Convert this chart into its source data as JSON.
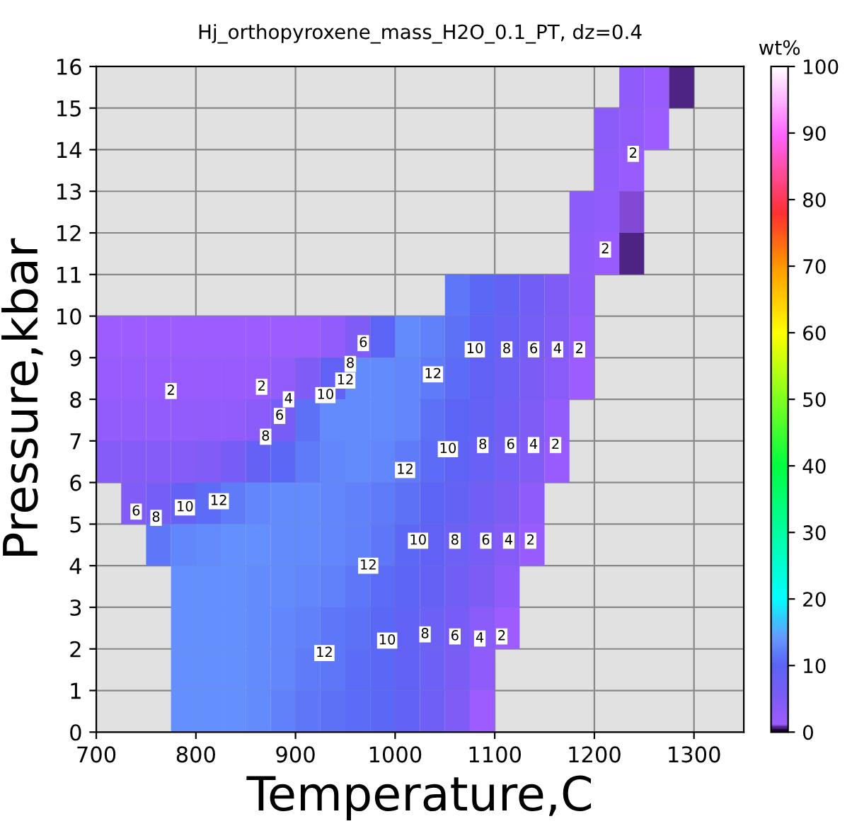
{
  "chart_data": {
    "type": "heatmap",
    "title": "Hj_orthopyroxene_mass_H2O_0.1_PT, dz=0.4",
    "xlabel": "Temperature,C",
    "ylabel": "Pressure,kbar",
    "clabel": "wt%",
    "x": [
      712.5,
      737.5,
      762.5,
      787.5,
      812.5,
      837.5,
      862.5,
      887.5,
      912.5,
      937.5,
      962.5,
      987.5,
      1012.5,
      1037.5,
      1062.5,
      1087.5,
      1112.5,
      1137.5,
      1162.5,
      1187.5,
      1212.5,
      1237.5,
      1262.5,
      1287.5,
      1312.5,
      1337.5
    ],
    "y": [
      15.5,
      14.5,
      13.5,
      12.5,
      11.5,
      10.5,
      9.5,
      8.5,
      7.5,
      6.5,
      5.5,
      4.5,
      3.5,
      2.5,
      1.5,
      0.5
    ],
    "cells": [
      [
        null,
        null,
        null,
        null,
        null,
        null,
        null,
        null,
        null,
        null,
        null,
        null,
        null,
        null,
        null,
        null,
        null,
        null,
        null,
        null,
        null,
        3,
        1.8,
        0.5,
        null,
        null
      ],
      [
        null,
        null,
        null,
        null,
        null,
        null,
        null,
        null,
        null,
        null,
        null,
        null,
        null,
        null,
        null,
        null,
        null,
        null,
        null,
        null,
        3.4,
        2.5,
        1.2,
        null,
        null,
        null
      ],
      [
        null,
        null,
        null,
        null,
        null,
        null,
        null,
        null,
        null,
        null,
        null,
        null,
        null,
        null,
        null,
        null,
        null,
        null,
        null,
        null,
        3,
        1.9,
        null,
        null,
        null,
        null
      ],
      [
        null,
        null,
        null,
        null,
        null,
        null,
        null,
        null,
        null,
        null,
        null,
        null,
        null,
        null,
        null,
        null,
        null,
        null,
        null,
        3.2,
        2.4,
        1,
        null,
        null,
        null,
        null
      ],
      [
        null,
        null,
        null,
        null,
        null,
        null,
        null,
        null,
        null,
        null,
        null,
        null,
        null,
        null,
        null,
        null,
        null,
        null,
        null,
        3,
        1.6,
        0.5,
        null,
        null,
        null,
        null
      ],
      [
        null,
        null,
        null,
        null,
        null,
        null,
        null,
        null,
        null,
        null,
        null,
        null,
        null,
        null,
        11.7,
        10.3,
        8.6,
        6.9,
        5,
        3,
        null,
        null,
        null,
        null,
        null,
        null
      ],
      [
        1.5,
        1.5,
        1.5,
        1.5,
        1.5,
        1.5,
        1.5,
        1.5,
        1.5,
        2.5,
        5,
        10,
        13,
        12.4,
        11.2,
        9.7,
        8,
        6.3,
        4.3,
        2,
        null,
        null,
        null,
        null,
        null,
        null
      ],
      [
        1.8,
        1.8,
        1.8,
        1.8,
        1.8,
        1.8,
        1.8,
        2.5,
        5,
        9,
        13,
        13,
        12.7,
        12,
        10.6,
        9.1,
        7.6,
        5.8,
        3.7,
        1.3,
        null,
        null,
        null,
        null,
        null,
        null
      ],
      [
        2.6,
        2.6,
        2.6,
        2.6,
        2.6,
        2.6,
        3.5,
        6,
        11,
        13,
        13,
        12.9,
        12.5,
        11.2,
        10,
        8.6,
        6.9,
        5,
        2.7,
        null,
        null,
        null,
        null,
        null,
        null,
        null
      ],
      [
        4,
        4,
        4,
        4.2,
        4.6,
        6.2,
        8.5,
        10.5,
        12,
        12.8,
        13,
        12.5,
        11.9,
        10.9,
        9.6,
        8.1,
        6.3,
        4.3,
        1.6,
        null,
        null,
        null,
        null,
        null,
        null,
        null
      ],
      [
        null,
        4.5,
        6.3,
        8.7,
        10.6,
        12,
        12.8,
        13,
        12.9,
        12.6,
        12.3,
        12.1,
        11.2,
        9.9,
        8.6,
        7,
        5.2,
        2.9,
        null,
        null,
        null,
        null,
        null,
        null,
        null,
        null
      ],
      [
        null,
        null,
        11.5,
        12.6,
        13.2,
        13.3,
        13.3,
        13.2,
        13,
        12.7,
        12.3,
        11.5,
        10.3,
        9.1,
        7.8,
        6.1,
        4.1,
        1.7,
        null,
        null,
        null,
        null,
        null,
        null,
        null,
        null
      ],
      [
        null,
        null,
        null,
        13.5,
        13.5,
        13.3,
        13.1,
        12.9,
        12.7,
        12.3,
        11.7,
        10.8,
        9.8,
        8.5,
        7,
        5.1,
        3.1,
        null,
        null,
        null,
        null,
        null,
        null,
        null,
        null,
        null
      ],
      [
        null,
        null,
        null,
        13.5,
        13.5,
        13.3,
        13,
        12.8,
        12.4,
        11.7,
        11,
        10.2,
        9.1,
        7.7,
        6,
        3.9,
        1.5,
        null,
        null,
        null,
        null,
        null,
        null,
        null,
        null,
        null
      ],
      [
        null,
        null,
        null,
        13.5,
        13.5,
        13.3,
        13,
        12.6,
        12,
        11.4,
        10.8,
        10.2,
        9.1,
        7.5,
        5.6,
        3,
        null,
        null,
        null,
        null,
        null,
        null,
        null,
        null,
        null,
        null
      ],
      [
        null,
        null,
        null,
        13.5,
        13.5,
        13.3,
        13,
        12.2,
        11.7,
        11.2,
        10.7,
        10.2,
        9.2,
        7.4,
        5,
        1.2,
        null,
        null,
        null,
        null,
        null,
        null,
        null,
        null,
        null,
        null
      ]
    ],
    "xlim": [
      700,
      1350
    ],
    "xticks": [
      700,
      800,
      900,
      1000,
      1100,
      1200,
      1300
    ],
    "ylim": [
      0,
      16
    ],
    "yticks": [
      0,
      1,
      2,
      3,
      4,
      5,
      6,
      7,
      8,
      9,
      10,
      11,
      12,
      13,
      14,
      15,
      16
    ],
    "clim": [
      0,
      100
    ],
    "cticks": [
      0,
      10,
      20,
      30,
      40,
      50,
      60,
      70,
      80,
      90,
      100
    ],
    "grid": true,
    "annotations": [
      "12",
      "10",
      "8",
      "6",
      "4",
      "2",
      "12",
      "10",
      "8",
      "6",
      "4",
      "2",
      "12",
      "10",
      "8",
      "6",
      "4",
      "2",
      "12",
      "10",
      "8",
      "6",
      "4",
      "2",
      "2",
      "2",
      "2",
      "2",
      "4",
      "6",
      "8",
      "6",
      "8",
      "10",
      "12",
      "6",
      "8",
      "10",
      "12"
    ]
  }
}
